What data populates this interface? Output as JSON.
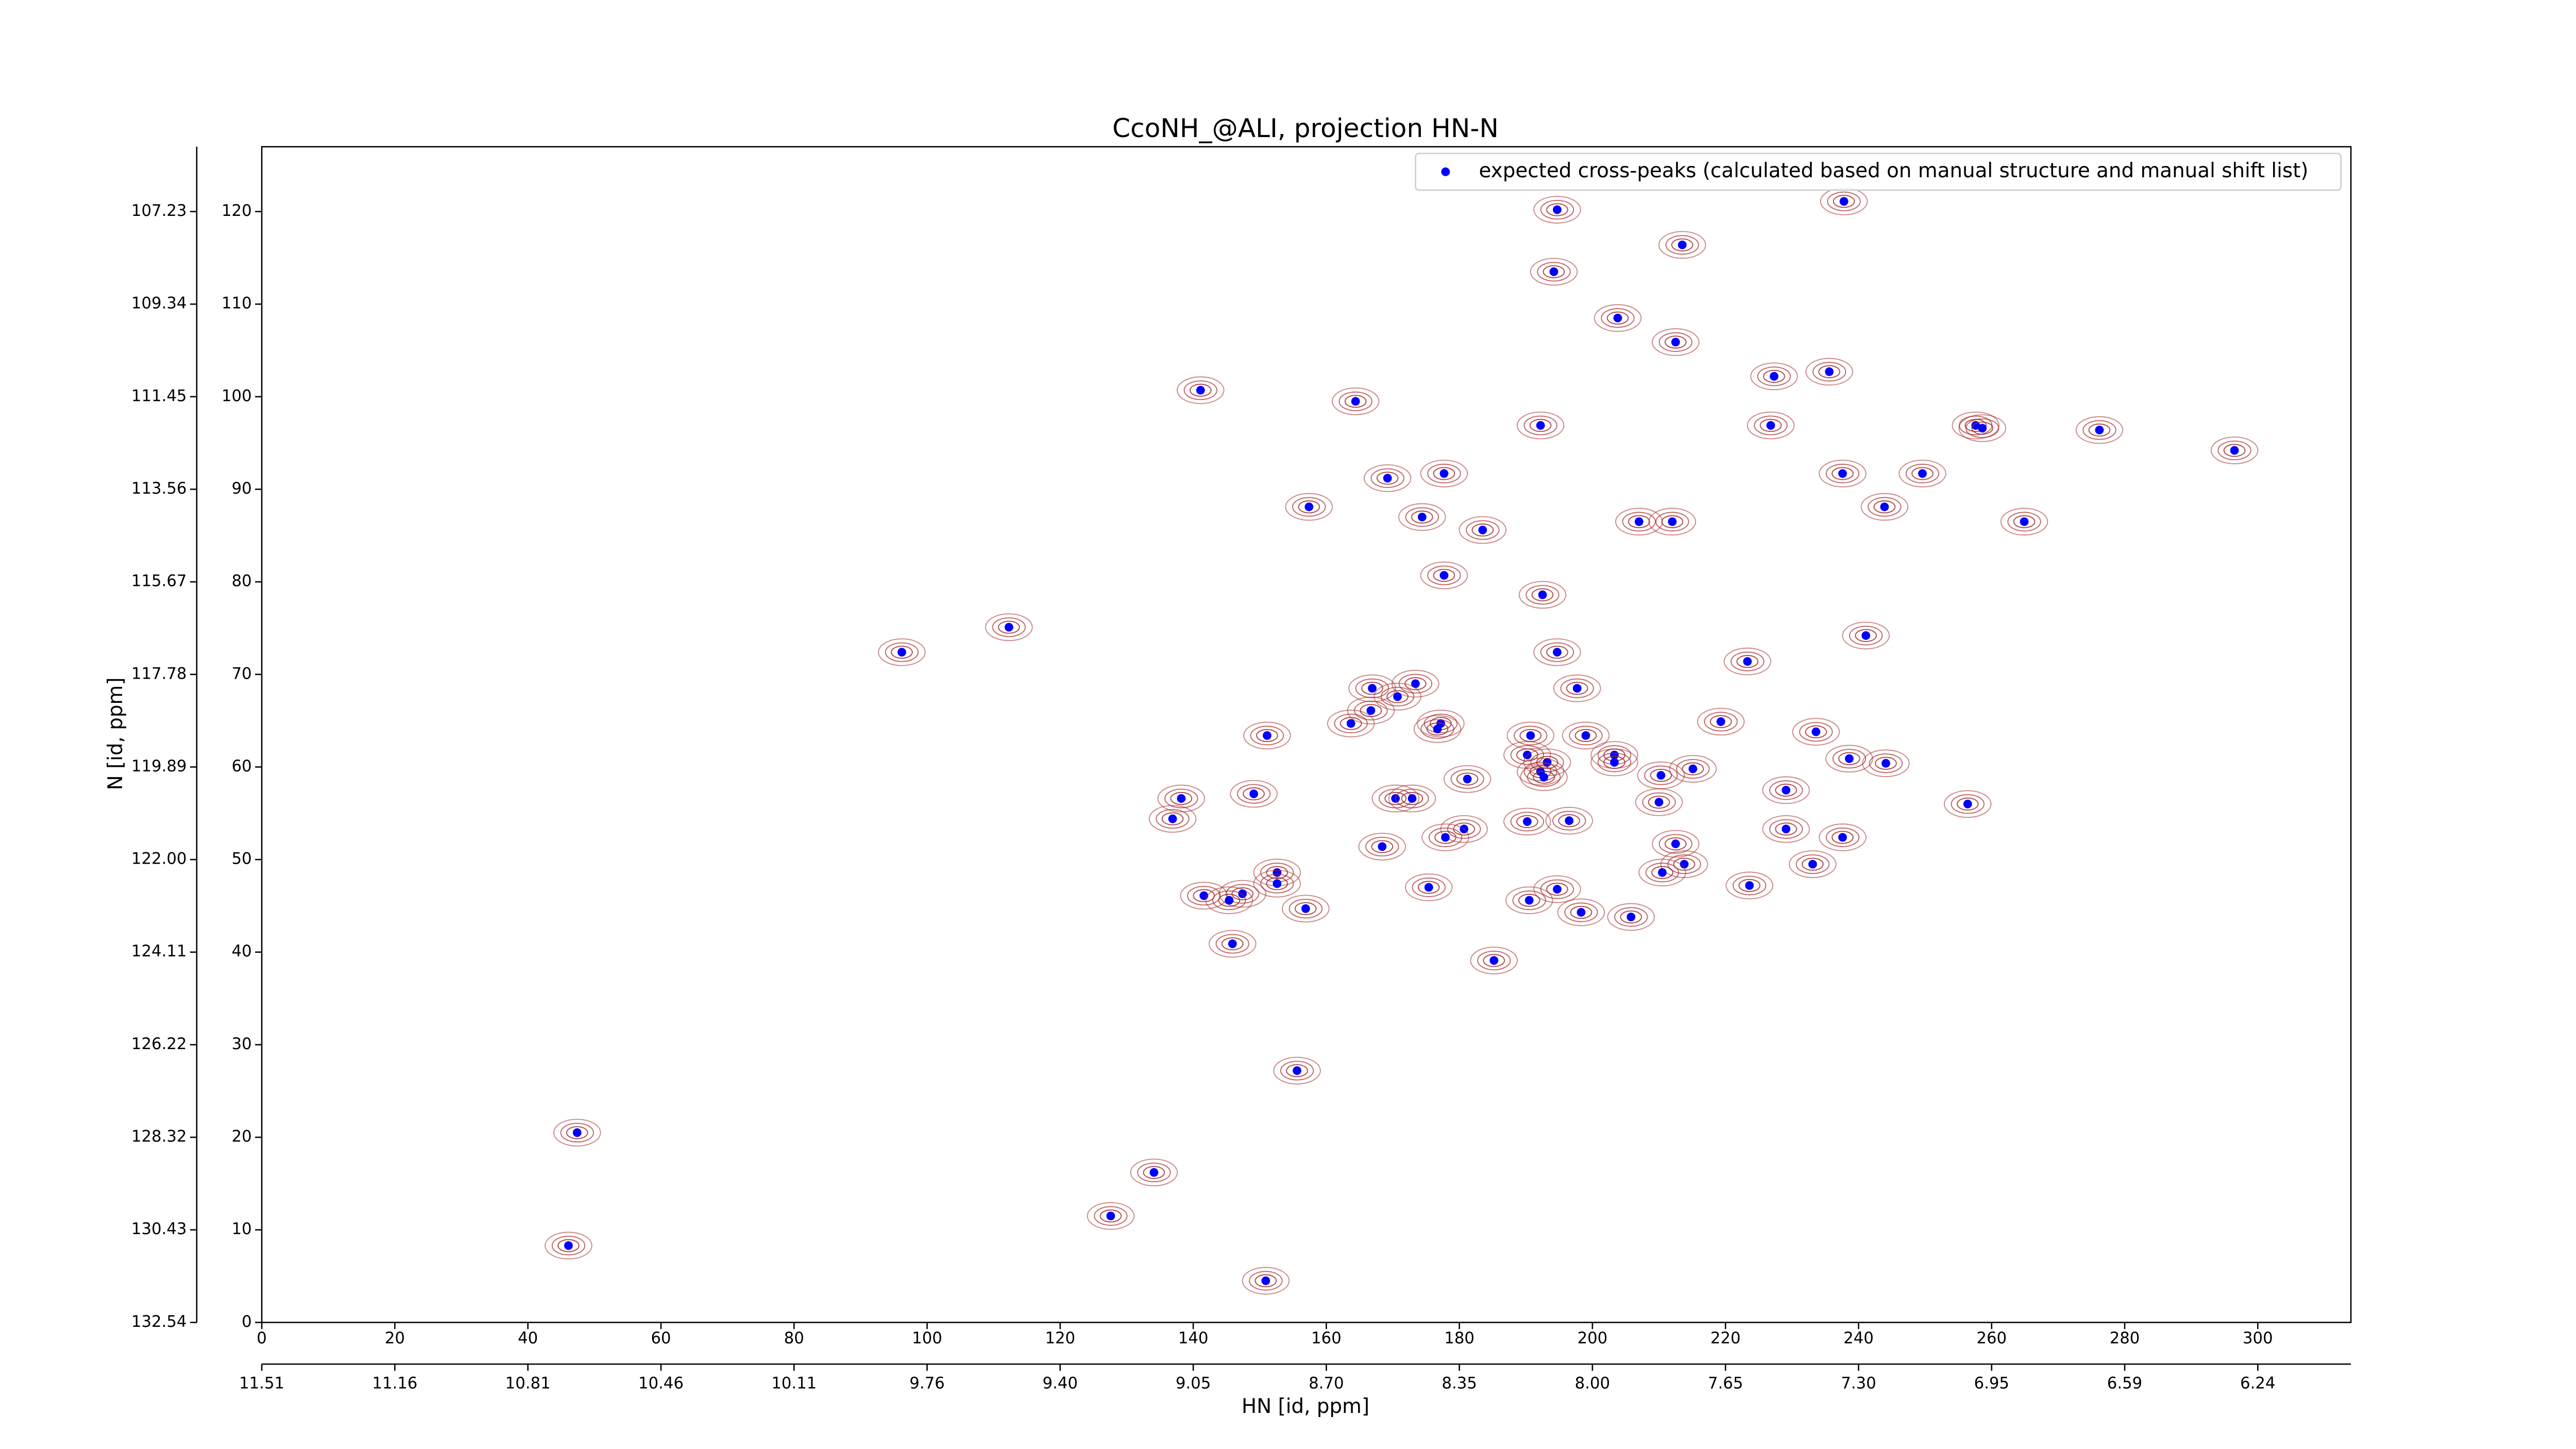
{
  "chart_data": {
    "type": "scatter",
    "title": "CcoNH_@ALI, projection HN-N",
    "xlabel": "HN [id, ppm]",
    "ylabel": "N [id, ppm]",
    "xlim": [
      0,
      314
    ],
    "ylim": [
      0,
      127
    ],
    "xticks": [
      0,
      20,
      40,
      60,
      80,
      100,
      120,
      140,
      160,
      180,
      200,
      220,
      240,
      260,
      280,
      300
    ],
    "yticks": [
      0,
      10,
      20,
      30,
      40,
      50,
      60,
      70,
      80,
      90,
      100,
      110,
      120
    ],
    "xticks_ppm": [
      {
        "value": 0,
        "label": "11.51"
      },
      {
        "value": 20,
        "label": "11.16"
      },
      {
        "value": 40,
        "label": "10.81"
      },
      {
        "value": 60,
        "label": "10.46"
      },
      {
        "value": 80,
        "label": "10.11"
      },
      {
        "value": 100,
        "label": "9.76"
      },
      {
        "value": 120,
        "label": "9.40"
      },
      {
        "value": 140,
        "label": "9.05"
      },
      {
        "value": 160,
        "label": "8.70"
      },
      {
        "value": 180,
        "label": "8.35"
      },
      {
        "value": 200,
        "label": "8.00"
      },
      {
        "value": 220,
        "label": "7.65"
      },
      {
        "value": 240,
        "label": "7.30"
      },
      {
        "value": 260,
        "label": "6.95"
      },
      {
        "value": 280,
        "label": "6.59"
      },
      {
        "value": 300,
        "label": "6.24"
      }
    ],
    "yticks_ppm": [
      {
        "value": 0,
        "label": "132.54"
      },
      {
        "value": 10,
        "label": "130.43"
      },
      {
        "value": 20,
        "label": "128.32"
      },
      {
        "value": 30,
        "label": "126.22"
      },
      {
        "value": 40,
        "label": "124.11"
      },
      {
        "value": 50,
        "label": "122.00"
      },
      {
        "value": 60,
        "label": "119.89"
      },
      {
        "value": 70,
        "label": "117.78"
      },
      {
        "value": 80,
        "label": "115.67"
      },
      {
        "value": 90,
        "label": "113.56"
      },
      {
        "value": 100,
        "label": "111.45"
      },
      {
        "value": 110,
        "label": "109.34"
      },
      {
        "value": 120,
        "label": "107.23"
      }
    ],
    "legend": "upper right",
    "series": [
      {
        "name": "expected cross-peaks (calculated based on manual structure and manual shift list)",
        "color": "#0000ff",
        "contour_color": "#a52a2a",
        "x": [
          194.7,
          237.8,
          213.5,
          194.2,
          203.8,
          212.5,
          141.1,
          227.3,
          235.6,
          164.4,
          192.2,
          226.8,
          257.6,
          258.6,
          276.2,
          296.5,
          177.7,
          169.2,
          237.6,
          249.6,
          157.4,
          243.9,
          174.4,
          183.5,
          207.0,
          212.0,
          264.9,
          177.7,
          192.5,
          112.3,
          241.1,
          96.2,
          194.7,
          223.3,
          197.7,
          173.4,
          166.9,
          170.7,
          166.7,
          163.7,
          177.2,
          176.7,
          219.3,
          233.6,
          151.1,
          190.7,
          199.0,
          190.2,
          193.2,
          203.3,
          203.3,
          238.6,
          244.1,
          192.2,
          192.7,
          181.2,
          210.3,
          215.1,
          229.1,
          149.1,
          138.2,
          170.4,
          172.9,
          210.0,
          256.4,
          136.9,
          190.2,
          196.5,
          180.7,
          229.1,
          177.9,
          237.6,
          212.5,
          168.4,
          233.1,
          213.8,
          210.5,
          152.6,
          152.6,
          175.4,
          223.6,
          141.6,
          147.4,
          145.4,
          194.7,
          190.5,
          156.9,
          198.3,
          205.8,
          145.9,
          185.2,
          155.6,
          47.4,
          134.1,
          127.6,
          46.1,
          150.9
        ],
        "values": [
          120.2,
          121.1,
          116.4,
          113.5,
          108.5,
          105.9,
          100.7,
          102.2,
          102.7,
          99.5,
          96.9,
          96.9,
          96.9,
          96.6,
          96.4,
          94.2,
          91.7,
          91.2,
          91.7,
          91.7,
          88.1,
          88.1,
          87.0,
          85.6,
          86.5,
          86.5,
          86.5,
          80.7,
          78.6,
          75.1,
          74.2,
          72.4,
          72.4,
          71.4,
          68.5,
          69.0,
          68.5,
          67.6,
          66.1,
          64.7,
          64.7,
          64.1,
          64.9,
          63.8,
          63.4,
          63.4,
          63.4,
          61.3,
          60.5,
          61.3,
          60.5,
          60.9,
          60.4,
          59.5,
          58.9,
          58.7,
          59.1,
          59.8,
          57.5,
          57.1,
          56.6,
          56.6,
          56.6,
          56.2,
          56.0,
          54.4,
          54.1,
          54.2,
          53.3,
          53.3,
          52.4,
          52.4,
          51.7,
          51.4,
          49.5,
          49.5,
          48.6,
          48.6,
          47.4,
          47.0,
          47.2,
          46.1,
          46.3,
          45.6,
          46.8,
          45.6,
          44.7,
          44.3,
          43.8,
          40.9,
          39.1,
          27.2,
          20.5,
          16.2,
          11.5,
          8.3,
          4.5
        ]
      }
    ]
  }
}
